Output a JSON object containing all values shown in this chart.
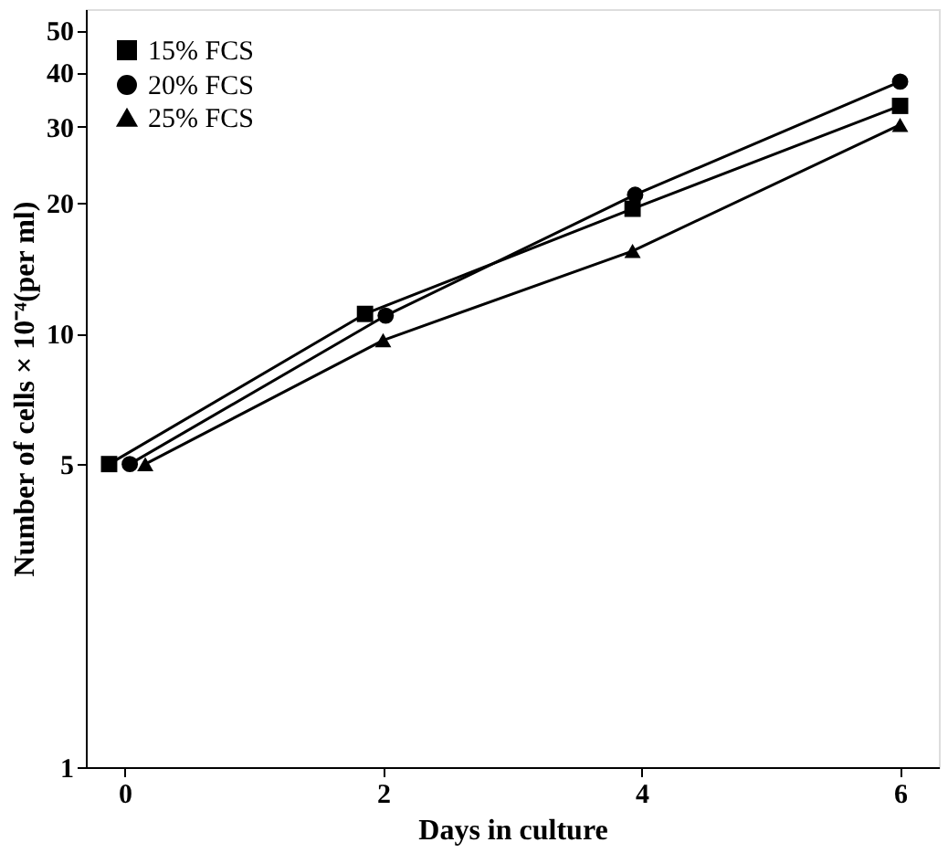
{
  "chart_data": {
    "type": "line",
    "xlabel": "Days in culture",
    "ylabel": "Number of cells × 10⁻⁴(per ml)",
    "xlim": [
      -0.3,
      6.3
    ],
    "xticks": [
      0,
      2,
      4,
      6
    ],
    "ylim": [
      1,
      56
    ],
    "yticks": [
      1,
      5,
      10,
      20,
      30,
      40,
      50
    ],
    "log": true,
    "grid": false,
    "legend": "top left",
    "line_style": "solid",
    "series": [
      {
        "name": "15% FCS",
        "color": "#000000",
        "marker": "square",
        "x": [
          -0.12,
          1.86,
          3.93,
          6.0
        ],
        "values": [
          5.0,
          11.1,
          19.4,
          33.5
        ]
      },
      {
        "name": "20% FCS",
        "color": "#000000",
        "marker": "circle",
        "x": [
          0.04,
          2.02,
          3.95,
          6.0
        ],
        "values": [
          5.0,
          11.0,
          20.9,
          38.1
        ]
      },
      {
        "name": "25% FCS",
        "color": "#000000",
        "marker": "triangle",
        "x": [
          0.16,
          2.0,
          3.93,
          6.0
        ],
        "values": [
          5.0,
          9.65,
          15.5,
          30.3
        ]
      }
    ]
  }
}
